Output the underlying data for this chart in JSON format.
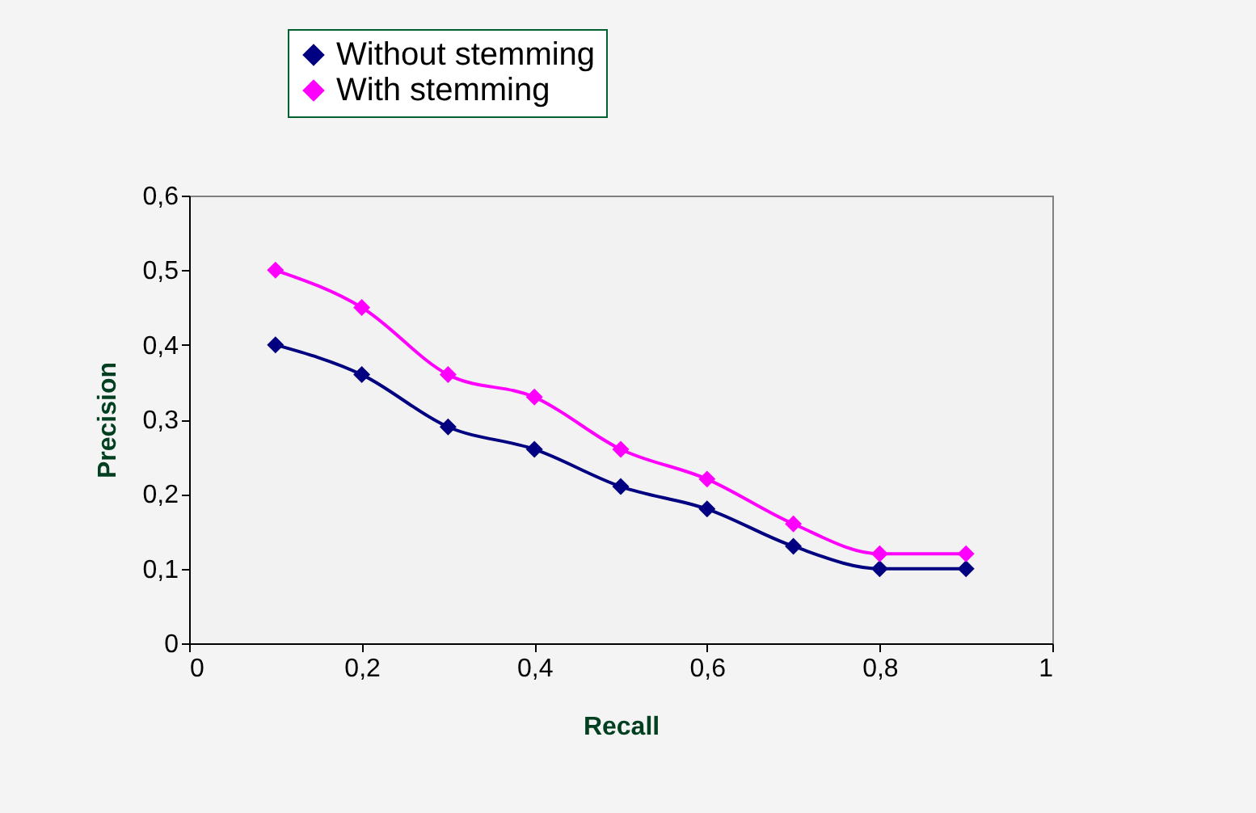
{
  "chart_data": {
    "type": "line",
    "xlabel": "Recall",
    "ylabel": "Precision",
    "x": [
      0.1,
      0.2,
      0.3,
      0.4,
      0.5,
      0.6,
      0.7,
      0.8,
      0.9
    ],
    "series": [
      {
        "name": "Without stemming",
        "color": "#000080",
        "values": [
          0.4,
          0.36,
          0.29,
          0.26,
          0.21,
          0.18,
          0.13,
          0.1,
          0.1
        ]
      },
      {
        "name": "With stemming",
        "color": "#ff00ff",
        "values": [
          0.5,
          0.45,
          0.36,
          0.33,
          0.26,
          0.22,
          0.16,
          0.12,
          0.12
        ]
      }
    ],
    "xlim": [
      0,
      1
    ],
    "ylim": [
      0,
      0.6
    ],
    "xticks": [
      0,
      {
        "value": 0.2,
        "label": "0,2"
      },
      {
        "value": 0.4,
        "label": "0,4"
      },
      {
        "value": 0.6,
        "label": "0,6"
      },
      {
        "value": 0.8,
        "label": "0,8"
      },
      1
    ],
    "yticks": [
      0,
      {
        "value": 0.1,
        "label": "0,1"
      },
      {
        "value": 0.2,
        "label": "0,2"
      },
      {
        "value": 0.3,
        "label": "0,3"
      },
      {
        "value": 0.4,
        "label": "0,4"
      },
      {
        "value": 0.5,
        "label": "0,5"
      },
      {
        "value": 0.6,
        "label": "0,6"
      }
    ],
    "legend": "top",
    "marker": "diamond",
    "line_style": "solid",
    "grid": false
  }
}
